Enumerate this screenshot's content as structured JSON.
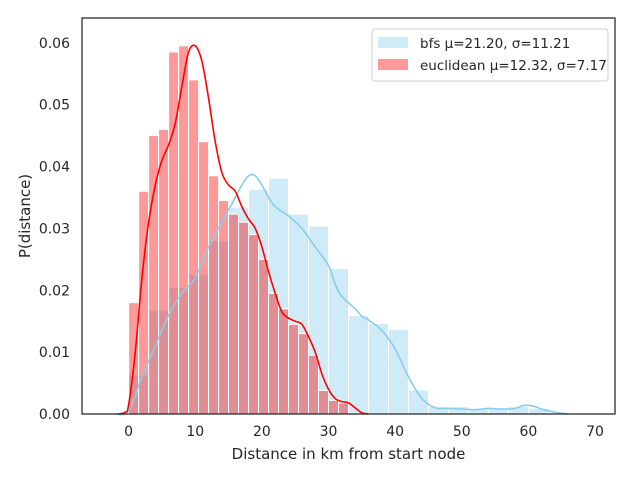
{
  "chart_data": {
    "type": "histogram",
    "title": "",
    "xlabel": "Distance in km from start node",
    "ylabel": "P(distance)",
    "xlim": [
      -7,
      73
    ],
    "ylim": [
      0,
      0.064
    ],
    "x_ticks": [
      0,
      10,
      20,
      30,
      40,
      50,
      60,
      70
    ],
    "x_tick_labels": [
      "0",
      "10",
      "20",
      "30",
      "40",
      "50",
      "60",
      "70"
    ],
    "y_ticks": [
      0,
      0.01,
      0.02,
      0.03,
      0.04,
      0.05,
      0.06
    ],
    "y_tick_labels": [
      "0.00",
      "0.01",
      "0.02",
      "0.03",
      "0.04",
      "0.05",
      "0.06"
    ],
    "grid": false,
    "legend_position": "top-right",
    "series": [
      {
        "name": "bfs μ=21.20, σ=11.21",
        "color": "#87ceeb",
        "bin_edges": [
          0,
          3,
          6,
          9,
          12,
          15,
          18,
          21,
          24,
          27,
          30,
          33,
          36,
          39,
          42,
          45,
          48,
          51,
          54,
          57,
          60,
          63,
          66
        ],
        "densities": [
          0.0063,
          0.0168,
          0.0205,
          0.0226,
          0.028,
          0.0334,
          0.0363,
          0.0381,
          0.0323,
          0.0304,
          0.0235,
          0.0159,
          0.0146,
          0.0137,
          0.0039,
          0.0012,
          0.0012,
          0.0009,
          0.0009,
          0.0012,
          0.0009,
          0.0003
        ],
        "kde": [
          [
            -2,
            0
          ],
          [
            0,
            0.0005
          ],
          [
            2,
            0.006
          ],
          [
            4,
            0.011
          ],
          [
            6,
            0.016
          ],
          [
            8,
            0.0195
          ],
          [
            10,
            0.022
          ],
          [
            12,
            0.027
          ],
          [
            14,
            0.031
          ],
          [
            16,
            0.035
          ],
          [
            17,
            0.037
          ],
          [
            18,
            0.0385
          ],
          [
            19,
            0.0385
          ],
          [
            20,
            0.037
          ],
          [
            21,
            0.035
          ],
          [
            22,
            0.0335
          ],
          [
            24,
            0.032
          ],
          [
            26,
            0.03
          ],
          [
            28,
            0.027
          ],
          [
            30,
            0.024
          ],
          [
            31,
            0.021
          ],
          [
            32,
            0.019
          ],
          [
            34,
            0.017
          ],
          [
            35,
            0.0158
          ],
          [
            36,
            0.0152
          ],
          [
            38,
            0.0135
          ],
          [
            40,
            0.0105
          ],
          [
            42,
            0.006
          ],
          [
            44,
            0.0025
          ],
          [
            46,
            0.001
          ],
          [
            48,
            0.0009
          ],
          [
            50,
            0.0008
          ],
          [
            52,
            0.0007
          ],
          [
            54,
            0.0009
          ],
          [
            56,
            0.0008
          ],
          [
            58,
            0.0009
          ],
          [
            59,
            0.0013
          ],
          [
            60,
            0.0014
          ],
          [
            61,
            0.0012
          ],
          [
            62,
            0.0008
          ],
          [
            64,
            0.0003
          ],
          [
            66,
            0
          ]
        ]
      },
      {
        "name": "euclidean μ=12.32, σ=7.17",
        "color": "#ff0000",
        "fill_color": "#ff9999",
        "bin_edges": [
          0,
          1.5,
          3,
          4.5,
          6,
          7.5,
          9,
          10.5,
          12,
          13.5,
          15,
          16.5,
          18,
          19.5,
          21,
          22.5,
          24,
          25.5,
          27,
          28.5,
          30,
          31.5,
          33,
          34.5
        ],
        "densities": [
          0.018,
          0.036,
          0.045,
          0.046,
          0.0585,
          0.0595,
          0.054,
          0.044,
          0.0385,
          0.0345,
          0.0323,
          0.031,
          0.029,
          0.025,
          0.0195,
          0.017,
          0.0145,
          0.013,
          0.0095,
          0.0038,
          0.0022,
          0.0018,
          0.0002
        ],
        "kde": [
          [
            -1.5,
            0
          ],
          [
            -0.5,
            0.0003
          ],
          [
            0,
            0.0015
          ],
          [
            1,
            0.01
          ],
          [
            2,
            0.022
          ],
          [
            3,
            0.031
          ],
          [
            4,
            0.037
          ],
          [
            5,
            0.041
          ],
          [
            6,
            0.0435
          ],
          [
            7,
            0.047
          ],
          [
            8,
            0.053
          ],
          [
            9,
            0.0585
          ],
          [
            10,
            0.0595
          ],
          [
            11,
            0.057
          ],
          [
            12,
            0.051
          ],
          [
            13,
            0.044
          ],
          [
            14,
            0.039
          ],
          [
            15,
            0.037
          ],
          [
            16,
            0.036
          ],
          [
            17,
            0.0335
          ],
          [
            18,
            0.0315
          ],
          [
            19,
            0.03
          ],
          [
            20,
            0.027
          ],
          [
            21,
            0.023
          ],
          [
            22,
            0.0195
          ],
          [
            23,
            0.0165
          ],
          [
            24,
            0.0155
          ],
          [
            25,
            0.015
          ],
          [
            26,
            0.0145
          ],
          [
            27,
            0.0125
          ],
          [
            28,
            0.01
          ],
          [
            29,
            0.0065
          ],
          [
            30,
            0.004
          ],
          [
            31,
            0.0025
          ],
          [
            32,
            0.002
          ],
          [
            33,
            0.0018
          ],
          [
            34,
            0.001
          ],
          [
            35,
            0.0002
          ],
          [
            36,
            0
          ]
        ]
      }
    ]
  }
}
